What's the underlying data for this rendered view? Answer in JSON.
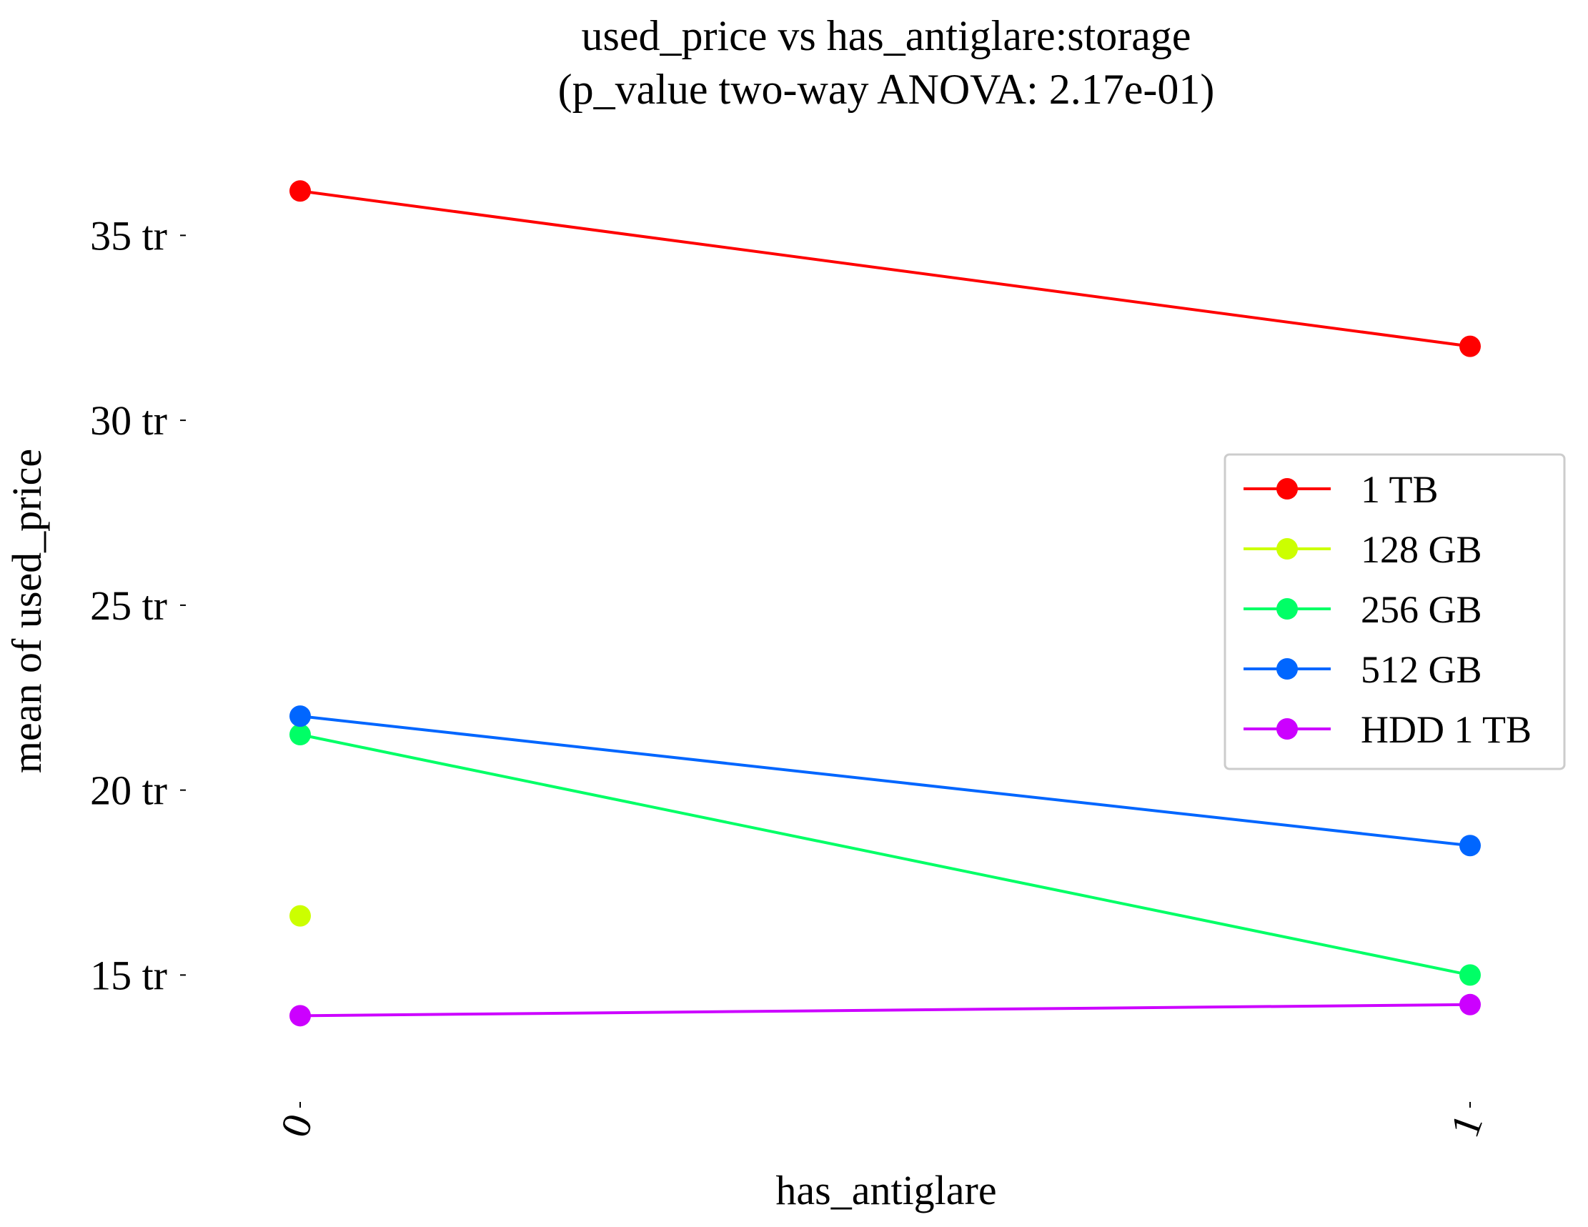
{
  "chart_data": {
    "type": "line",
    "title": "used_price vs has_antiglare:storage",
    "subtitle": "(p_value two-way ANOVA: 2.17e-01)",
    "xlabel": "has_antiglare",
    "ylabel": "mean of used_price",
    "categories": [
      "0",
      "1"
    ],
    "y_ticks": [
      {
        "value": 15,
        "label": "15 tr"
      },
      {
        "value": 20,
        "label": "20 tr"
      },
      {
        "value": 25,
        "label": "25 tr"
      },
      {
        "value": 30,
        "label": "30 tr"
      },
      {
        "value": 35,
        "label": "35 tr"
      }
    ],
    "ylim": [
      11.8,
      37.5
    ],
    "grid": false,
    "legend_position": "right",
    "series": [
      {
        "name": "1 TB",
        "color": "#ff0000",
        "values": [
          36.2,
          32.0
        ]
      },
      {
        "name": "128 GB",
        "color": "#ccff00",
        "values": [
          16.6,
          null
        ]
      },
      {
        "name": "256 GB",
        "color": "#00ff66",
        "values": [
          21.5,
          15.0
        ]
      },
      {
        "name": "512 GB",
        "color": "#0066ff",
        "values": [
          22.0,
          18.5
        ]
      },
      {
        "name": "HDD 1 TB",
        "color": "#cc00ff",
        "values": [
          13.9,
          14.2
        ]
      }
    ]
  }
}
